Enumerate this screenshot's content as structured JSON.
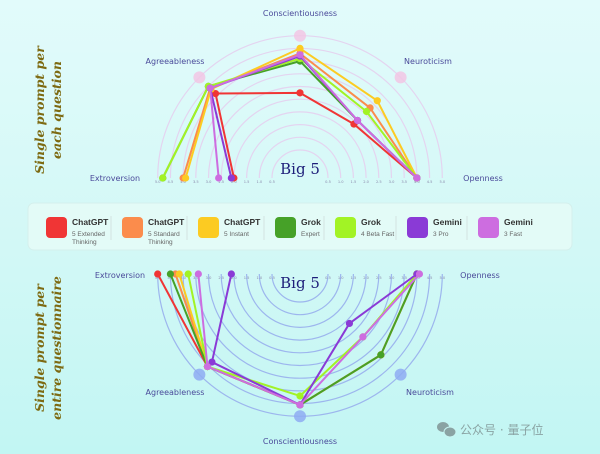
{
  "side_labels": {
    "top": [
      "Single prompt per",
      "each question"
    ],
    "bottom": [
      "Single prompt per",
      "entire questionnaire"
    ]
  },
  "watermark": "公众号 · 量子位",
  "legend": [
    {
      "title": "ChatGPT",
      "sub": [
        "5 Extended",
        "Thinking"
      ],
      "color": "#f03535"
    },
    {
      "title": "ChatGPT",
      "sub": [
        "5 Standard",
        "Thinking"
      ],
      "color": "#fb8c4c"
    },
    {
      "title": "ChatGPT",
      "sub": [
        "5 Instant"
      ],
      "color": "#fccb22"
    },
    {
      "title": "Grok",
      "sub": [
        "Expert"
      ],
      "color": "#46a128"
    },
    {
      "title": "Grok",
      "sub": [
        "4 Beta Fast"
      ],
      "color": "#a2f325"
    },
    {
      "title": "Gemini",
      "sub": [
        "3 Pro"
      ],
      "color": "#8a3ad6"
    },
    {
      "title": "Gemini",
      "sub": [
        "3 Fast"
      ],
      "color": "#cd6de0"
    }
  ],
  "chart_data": [
    {
      "type": "radar",
      "center_label": "Big 5",
      "orientation": "upper-semicircle",
      "axes": [
        "Extroversion",
        "Agreeableness",
        "Conscientiousness",
        "Neuroticism",
        "Openness"
      ],
      "rlim": [
        0,
        5
      ],
      "tick_labels": [
        "5.0",
        "4.5",
        "4.0",
        "3.5",
        "3.0",
        "2.5",
        "2.0",
        "1.5",
        "1.0",
        "0.5"
      ],
      "ring_color": "#e4d4f0",
      "marker_color": "#f2c6e4",
      "series": [
        {
          "name": "ChatGPT 5 Extended Thinking",
          "color": "#f03535",
          "values": [
            2.0,
            4.1,
            2.75,
            2.4,
            4.0
          ]
        },
        {
          "name": "ChatGPT 5 Standard Thinking",
          "color": "#fb8c4c",
          "values": [
            4.0,
            4.4,
            4.3,
            3.3,
            4.0
          ]
        },
        {
          "name": "ChatGPT 5 Instant",
          "color": "#fccb22",
          "values": [
            3.9,
            4.35,
            4.5,
            3.7,
            4.0
          ]
        },
        {
          "name": "Grok Expert",
          "color": "#46a128",
          "values": [
            4.8,
            4.5,
            4.0,
            2.6,
            4.0
          ]
        },
        {
          "name": "Grok 4 Beta Fast",
          "color": "#a2f325",
          "values": [
            4.8,
            4.5,
            4.1,
            3.1,
            4.0
          ]
        },
        {
          "name": "Gemini 3 Pro",
          "color": "#8a3ad6",
          "values": [
            2.1,
            4.4,
            4.2,
            2.6,
            4.0
          ]
        },
        {
          "name": "Gemini 3 Fast",
          "color": "#cd6de0",
          "values": [
            2.6,
            4.4,
            4.25,
            2.6,
            4.0
          ]
        }
      ]
    },
    {
      "type": "radar",
      "center_label": "Big 5",
      "orientation": "lower-semicircle",
      "axes": [
        "Extroversion",
        "Agreeableness",
        "Conscientiousness",
        "Neuroticism",
        "Openness"
      ],
      "rlim": [
        0,
        5
      ],
      "tick_labels": [
        "5.0",
        "4.5",
        "4.0",
        "3.5",
        "3.0",
        "2.5",
        "2.0",
        "1.5",
        "1.0",
        "0.5"
      ],
      "ring_color": "#9db6ee",
      "marker_color": "#8eacf2",
      "series": [
        {
          "name": "ChatGPT 5 Extended Thinking",
          "color": "#f03535",
          "values": [
            5.0,
            4.55,
            4.55,
            3.9,
            4.0
          ]
        },
        {
          "name": "ChatGPT 5 Standard Thinking",
          "color": "#fb8c4c",
          "values": [
            4.3,
            4.55,
            4.55,
            3.9,
            4.0
          ]
        },
        {
          "name": "ChatGPT 5 Instant",
          "color": "#fccb22",
          "values": [
            4.15,
            4.55,
            4.55,
            3.9,
            4.0
          ]
        },
        {
          "name": "Grok Expert",
          "color": "#46a128",
          "values": [
            4.5,
            4.55,
            4.55,
            3.9,
            4.0
          ]
        },
        {
          "name": "Grok 4 Beta Fast",
          "color": "#a2f325",
          "values": [
            3.8,
            4.55,
            4.2,
            2.9,
            4.0
          ]
        },
        {
          "name": "Gemini 3 Pro",
          "color": "#8a3ad6",
          "values": [
            2.1,
            4.3,
            4.55,
            2.15,
            4.0
          ]
        },
        {
          "name": "Gemini 3 Fast",
          "color": "#cd6de0",
          "values": [
            3.4,
            4.55,
            4.55,
            2.9,
            4.1
          ]
        }
      ]
    }
  ]
}
